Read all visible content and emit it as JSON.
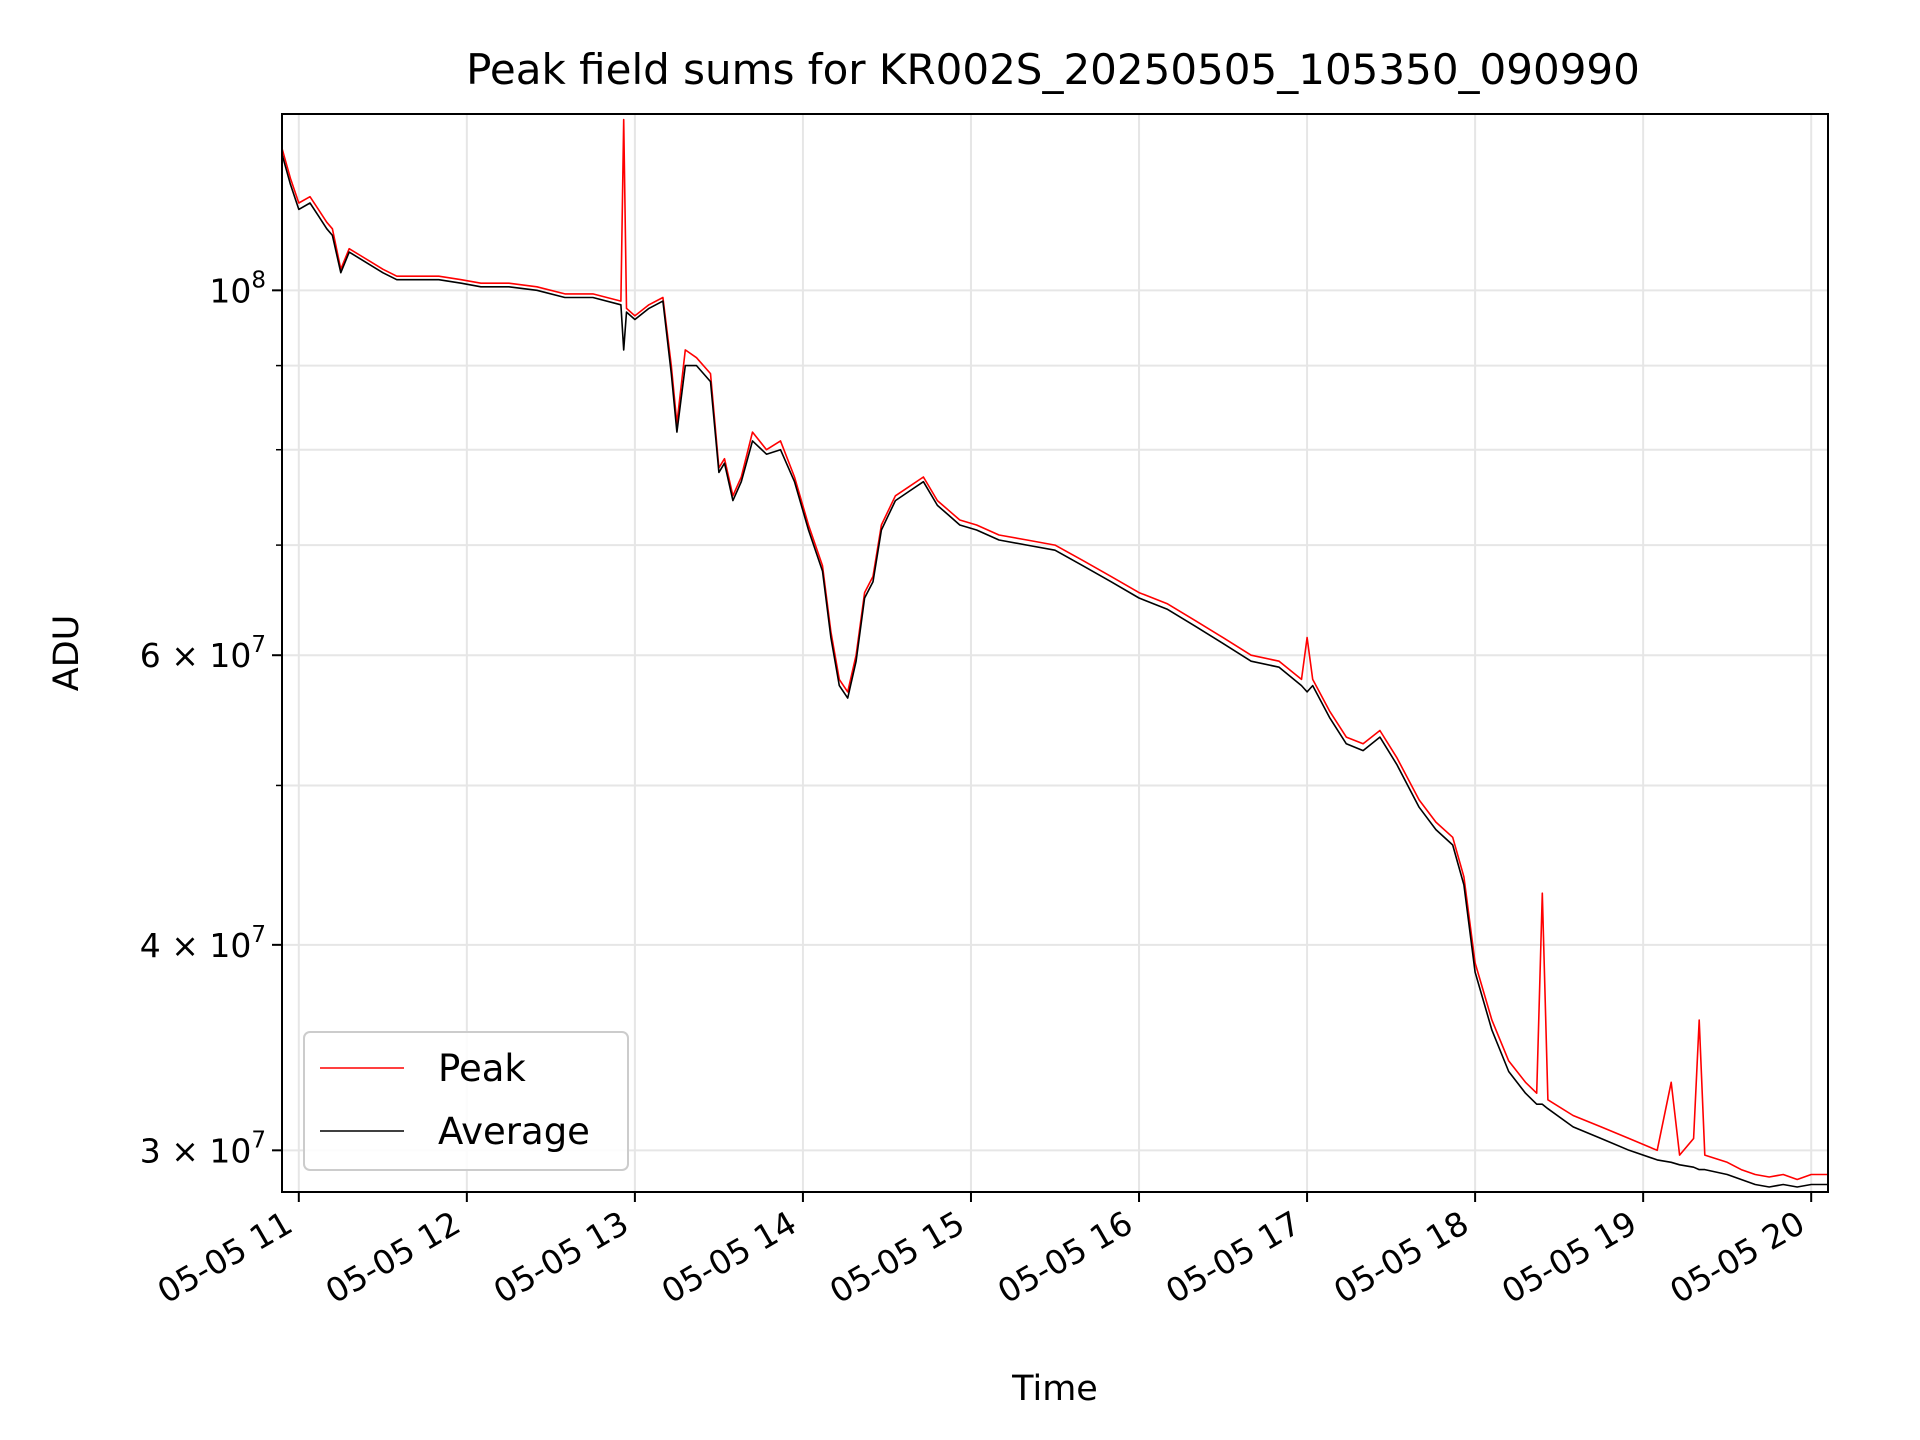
{
  "chart_data": {
    "type": "line",
    "title": "Peak field sums for KR002S_20250505_105350_090990",
    "xlabel": "Time",
    "ylabel": "ADU",
    "y_scale": "log",
    "grid": true,
    "legend_position": "lower-left",
    "x_range": [
      "05-05 10:54",
      "05-05 20:06"
    ],
    "ylim": [
      28300000,
      128000000
    ],
    "x_ticks": [
      {
        "time": "05-05 11:00",
        "label": "05-05 11"
      },
      {
        "time": "05-05 12:00",
        "label": "05-05 12"
      },
      {
        "time": "05-05 13:00",
        "label": "05-05 13"
      },
      {
        "time": "05-05 14:00",
        "label": "05-05 14"
      },
      {
        "time": "05-05 15:00",
        "label": "05-05 15"
      },
      {
        "time": "05-05 16:00",
        "label": "05-05 16"
      },
      {
        "time": "05-05 17:00",
        "label": "05-05 17"
      },
      {
        "time": "05-05 18:00",
        "label": "05-05 18"
      },
      {
        "time": "05-05 19:00",
        "label": "05-05 19"
      },
      {
        "time": "05-05 20:00",
        "label": "05-05 20"
      }
    ],
    "y_ticks_major": [
      {
        "value": 100000000,
        "mantissa": "",
        "base": "10",
        "exp": "8"
      },
      {
        "value": 60000000,
        "mantissa": "6",
        "base": "10",
        "exp": "7"
      },
      {
        "value": 40000000,
        "mantissa": "4",
        "base": "10",
        "exp": "7"
      },
      {
        "value": 30000000,
        "mantissa": "3",
        "base": "10",
        "exp": "7"
      }
    ],
    "y_ticks_minor": [
      50000000,
      70000000,
      80000000,
      90000000
    ],
    "colors": {
      "peak": "#ff0000",
      "average": "#000000"
    },
    "series": [
      {
        "name": "Peak",
        "color": "#ff0000",
        "points": [
          [
            "05-05 10:54",
            122000000
          ],
          [
            "05-05 10:57",
            117000000
          ],
          [
            "05-05 11:00",
            113000000
          ],
          [
            "05-05 11:04",
            114000000
          ],
          [
            "05-05 11:07",
            112000000
          ],
          [
            "05-05 11:10",
            110000000
          ],
          [
            "05-05 11:12",
            109000000
          ],
          [
            "05-05 11:15",
            103000000
          ],
          [
            "05-05 11:18",
            106000000
          ],
          [
            "05-05 11:22",
            105000000
          ],
          [
            "05-05 11:26",
            104000000
          ],
          [
            "05-05 11:30",
            103000000
          ],
          [
            "05-05 11:35",
            102000000
          ],
          [
            "05-05 11:42",
            102000000
          ],
          [
            "05-05 11:50",
            102000000
          ],
          [
            "05-05 11:58",
            101500000
          ],
          [
            "05-05 12:05",
            101000000
          ],
          [
            "05-05 12:15",
            101000000
          ],
          [
            "05-05 12:25",
            100500000
          ],
          [
            "05-05 12:35",
            99500000
          ],
          [
            "05-05 12:45",
            99500000
          ],
          [
            "05-05 12:55",
            98500000
          ],
          [
            "05-05 12:56",
            127000000
          ],
          [
            "05-05 12:57",
            97500000
          ],
          [
            "05-05 13:00",
            96500000
          ],
          [
            "05-05 13:05",
            98000000
          ],
          [
            "05-05 13:10",
            99000000
          ],
          [
            "05-05 13:13",
            90000000
          ],
          [
            "05-05 13:15",
            83000000
          ],
          [
            "05-05 13:18",
            92000000
          ],
          [
            "05-05 13:22",
            91000000
          ],
          [
            "05-05 13:27",
            89000000
          ],
          [
            "05-05 13:30",
            78000000
          ],
          [
            "05-05 13:32",
            79000000
          ],
          [
            "05-05 13:35",
            75000000
          ],
          [
            "05-05 13:38",
            77000000
          ],
          [
            "05-05 13:42",
            82000000
          ],
          [
            "05-05 13:47",
            80000000
          ],
          [
            "05-05 13:52",
            81000000
          ],
          [
            "05-05 13:57",
            77000000
          ],
          [
            "05-05 14:02",
            72000000
          ],
          [
            "05-05 14:07",
            68000000
          ],
          [
            "05-05 14:10",
            62000000
          ],
          [
            "05-05 14:13",
            58000000
          ],
          [
            "05-05 14:16",
            57000000
          ],
          [
            "05-05 14:19",
            60000000
          ],
          [
            "05-05 14:22",
            65500000
          ],
          [
            "05-05 14:25",
            67000000
          ],
          [
            "05-05 14:28",
            72000000
          ],
          [
            "05-05 14:33",
            75000000
          ],
          [
            "05-05 14:38",
            76000000
          ],
          [
            "05-05 14:43",
            77000000
          ],
          [
            "05-05 14:48",
            74500000
          ],
          [
            "05-05 14:52",
            73500000
          ],
          [
            "05-05 14:56",
            72500000
          ],
          [
            "05-05 15:02",
            72000000
          ],
          [
            "05-05 15:10",
            71000000
          ],
          [
            "05-05 15:20",
            70500000
          ],
          [
            "05-05 15:30",
            70000000
          ],
          [
            "05-05 15:40",
            68500000
          ],
          [
            "05-05 15:50",
            67000000
          ],
          [
            "05-05 16:00",
            65500000
          ],
          [
            "05-05 16:10",
            64500000
          ],
          [
            "05-05 16:20",
            63000000
          ],
          [
            "05-05 16:30",
            61500000
          ],
          [
            "05-05 16:40",
            60000000
          ],
          [
            "05-05 16:50",
            59500000
          ],
          [
            "05-05 16:58",
            58000000
          ],
          [
            "05-05 17:00",
            61500000
          ],
          [
            "05-05 17:02",
            58000000
          ],
          [
            "05-05 17:08",
            55500000
          ],
          [
            "05-05 17:14",
            53500000
          ],
          [
            "05-05 17:20",
            53000000
          ],
          [
            "05-05 17:26",
            54000000
          ],
          [
            "05-05 17:32",
            52000000
          ],
          [
            "05-05 17:40",
            49000000
          ],
          [
            "05-05 17:46",
            47500000
          ],
          [
            "05-05 17:52",
            46500000
          ],
          [
            "05-05 17:56",
            44000000
          ],
          [
            "05-05 18:00",
            39000000
          ],
          [
            "05-05 18:06",
            36000000
          ],
          [
            "05-05 18:12",
            34000000
          ],
          [
            "05-05 18:18",
            33000000
          ],
          [
            "05-05 18:22",
            32500000
          ],
          [
            "05-05 18:24",
            43000000
          ],
          [
            "05-05 18:26",
            32200000
          ],
          [
            "05-05 18:35",
            31500000
          ],
          [
            "05-05 18:45",
            31000000
          ],
          [
            "05-05 18:55",
            30500000
          ],
          [
            "05-05 19:05",
            30000000
          ],
          [
            "05-05 19:10",
            33000000
          ],
          [
            "05-05 19:13",
            29800000
          ],
          [
            "05-05 19:18",
            30500000
          ],
          [
            "05-05 19:20",
            36000000
          ],
          [
            "05-05 19:22",
            29800000
          ],
          [
            "05-05 19:30",
            29500000
          ],
          [
            "05-05 19:35",
            29200000
          ],
          [
            "05-05 19:40",
            29000000
          ],
          [
            "05-05 19:45",
            28900000
          ],
          [
            "05-05 19:50",
            29000000
          ],
          [
            "05-05 19:55",
            28800000
          ],
          [
            "05-05 20:00",
            29000000
          ],
          [
            "05-05 20:06",
            29000000
          ]
        ]
      },
      {
        "name": "Average",
        "color": "#000000",
        "points": [
          [
            "05-05 10:54",
            121000000
          ],
          [
            "05-05 10:57",
            116000000
          ],
          [
            "05-05 11:00",
            112000000
          ],
          [
            "05-05 11:04",
            113000000
          ],
          [
            "05-05 11:07",
            111000000
          ],
          [
            "05-05 11:10",
            109000000
          ],
          [
            "05-05 11:12",
            108000000
          ],
          [
            "05-05 11:15",
            102500000
          ],
          [
            "05-05 11:18",
            105500000
          ],
          [
            "05-05 11:22",
            104500000
          ],
          [
            "05-05 11:26",
            103500000
          ],
          [
            "05-05 11:30",
            102500000
          ],
          [
            "05-05 11:35",
            101500000
          ],
          [
            "05-05 11:42",
            101500000
          ],
          [
            "05-05 11:50",
            101500000
          ],
          [
            "05-05 11:58",
            101000000
          ],
          [
            "05-05 12:05",
            100500000
          ],
          [
            "05-05 12:15",
            100500000
          ],
          [
            "05-05 12:25",
            100000000
          ],
          [
            "05-05 12:35",
            99000000
          ],
          [
            "05-05 12:45",
            99000000
          ],
          [
            "05-05 12:55",
            98000000
          ],
          [
            "05-05 12:56",
            92000000
          ],
          [
            "05-05 12:57",
            97000000
          ],
          [
            "05-05 13:00",
            96000000
          ],
          [
            "05-05 13:05",
            97500000
          ],
          [
            "05-05 13:10",
            98500000
          ],
          [
            "05-05 13:13",
            89000000
          ],
          [
            "05-05 13:15",
            82000000
          ],
          [
            "05-05 13:18",
            90000000
          ],
          [
            "05-05 13:22",
            90000000
          ],
          [
            "05-05 13:27",
            88000000
          ],
          [
            "05-05 13:30",
            77500000
          ],
          [
            "05-05 13:32",
            78500000
          ],
          [
            "05-05 13:35",
            74500000
          ],
          [
            "05-05 13:38",
            76500000
          ],
          [
            "05-05 13:42",
            81000000
          ],
          [
            "05-05 13:47",
            79500000
          ],
          [
            "05-05 13:52",
            80000000
          ],
          [
            "05-05 13:57",
            76500000
          ],
          [
            "05-05 14:02",
            71500000
          ],
          [
            "05-05 14:07",
            67500000
          ],
          [
            "05-05 14:10",
            61500000
          ],
          [
            "05-05 14:13",
            57500000
          ],
          [
            "05-05 14:16",
            56500000
          ],
          [
            "05-05 14:19",
            59500000
          ],
          [
            "05-05 14:22",
            65000000
          ],
          [
            "05-05 14:25",
            66500000
          ],
          [
            "05-05 14:28",
            71500000
          ],
          [
            "05-05 14:33",
            74500000
          ],
          [
            "05-05 14:38",
            75500000
          ],
          [
            "05-05 14:43",
            76500000
          ],
          [
            "05-05 14:48",
            74000000
          ],
          [
            "05-05 14:52",
            73000000
          ],
          [
            "05-05 14:56",
            72000000
          ],
          [
            "05-05 15:02",
            71500000
          ],
          [
            "05-05 15:10",
            70500000
          ],
          [
            "05-05 15:20",
            70000000
          ],
          [
            "05-05 15:30",
            69500000
          ],
          [
            "05-05 15:40",
            68000000
          ],
          [
            "05-05 15:50",
            66500000
          ],
          [
            "05-05 16:00",
            65000000
          ],
          [
            "05-05 16:10",
            64000000
          ],
          [
            "05-05 16:20",
            62500000
          ],
          [
            "05-05 16:30",
            61000000
          ],
          [
            "05-05 16:40",
            59500000
          ],
          [
            "05-05 16:50",
            59000000
          ],
          [
            "05-05 16:58",
            57500000
          ],
          [
            "05-05 17:00",
            57000000
          ],
          [
            "05-05 17:02",
            57500000
          ],
          [
            "05-05 17:08",
            55000000
          ],
          [
            "05-05 17:14",
            53000000
          ],
          [
            "05-05 17:20",
            52500000
          ],
          [
            "05-05 17:26",
            53500000
          ],
          [
            "05-05 17:32",
            51500000
          ],
          [
            "05-05 17:40",
            48500000
          ],
          [
            "05-05 17:46",
            47000000
          ],
          [
            "05-05 17:52",
            46000000
          ],
          [
            "05-05 17:56",
            43500000
          ],
          [
            "05-05 18:00",
            38500000
          ],
          [
            "05-05 18:06",
            35500000
          ],
          [
            "05-05 18:12",
            33500000
          ],
          [
            "05-05 18:18",
            32500000
          ],
          [
            "05-05 18:22",
            32000000
          ],
          [
            "05-05 18:24",
            32000000
          ],
          [
            "05-05 18:26",
            31800000
          ],
          [
            "05-05 18:35",
            31000000
          ],
          [
            "05-05 18:45",
            30500000
          ],
          [
            "05-05 18:55",
            30000000
          ],
          [
            "05-05 19:05",
            29600000
          ],
          [
            "05-05 19:10",
            29500000
          ],
          [
            "05-05 19:13",
            29400000
          ],
          [
            "05-05 19:18",
            29300000
          ],
          [
            "05-05 19:20",
            29200000
          ],
          [
            "05-05 19:22",
            29200000
          ],
          [
            "05-05 19:30",
            29000000
          ],
          [
            "05-05 19:35",
            28800000
          ],
          [
            "05-05 19:40",
            28600000
          ],
          [
            "05-05 19:45",
            28500000
          ],
          [
            "05-05 19:50",
            28600000
          ],
          [
            "05-05 19:55",
            28500000
          ],
          [
            "05-05 20:00",
            28600000
          ],
          [
            "05-05 20:06",
            28600000
          ]
        ]
      }
    ]
  }
}
